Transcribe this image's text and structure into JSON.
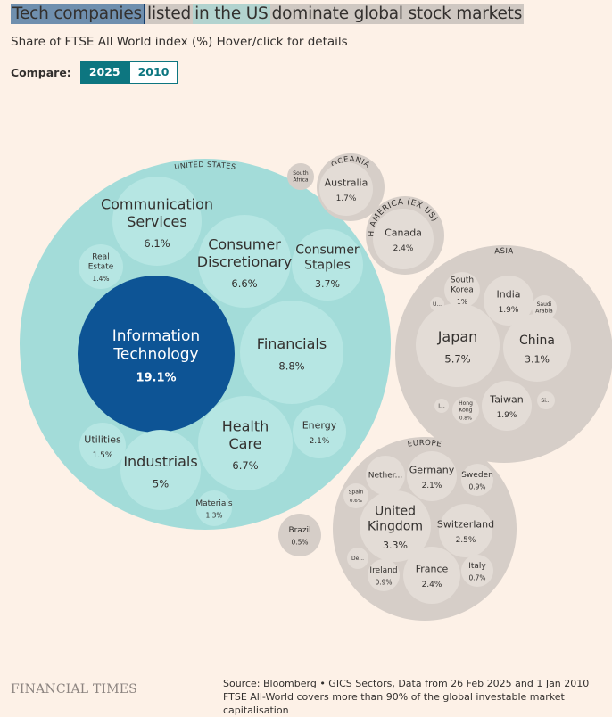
{
  "title": {
    "parts": [
      "Tech companies",
      "listed",
      "in the US",
      "dominate global stock markets"
    ]
  },
  "subtitle": "Share of FTSE All World index (%) Hover/click for details",
  "compare": {
    "label": "Compare:",
    "options": [
      "2025",
      "2010"
    ],
    "selected": "2025"
  },
  "footer": {
    "logo": "FINANCIAL TIMES",
    "source": "Source: Bloomberg • GICS Sectors, Data from 26 Feb 2025 and 1 Jan 2010",
    "note": "FTSE All-World covers more than 90% of the global investable market capitalisation"
  },
  "colors": {
    "background": "#fdf1e7",
    "us_group": "#a3dcd9",
    "us_sector": "#b6e6e3",
    "highlight": "#0d5495",
    "other_group": "#d6cec8",
    "other_country": "#e3dcd6"
  },
  "chart_data": {
    "type": "packed-bubble",
    "unit": "% share of FTSE All World index",
    "year": "2025",
    "groups": [
      {
        "name": "UNITED STATES",
        "children": [
          {
            "label": "Information Technology",
            "value": "19.1%"
          },
          {
            "label": "Financials",
            "value": "8.8%"
          },
          {
            "label": "Health Care",
            "value": "6.7%"
          },
          {
            "label": "Consumer Discretionary",
            "value": "6.6%"
          },
          {
            "label": "Communication Services",
            "value": "6.1%"
          },
          {
            "label": "Industrials",
            "value": "5%"
          },
          {
            "label": "Consumer Staples",
            "value": "3.7%"
          },
          {
            "label": "Energy",
            "value": "2.1%"
          },
          {
            "label": "Utilities",
            "value": "1.5%"
          },
          {
            "label": "Real Estate",
            "value": "1.4%"
          },
          {
            "label": "Materials",
            "value": "1.3%"
          }
        ]
      },
      {
        "name": "",
        "children": [
          {
            "label": "South Africa",
            "value": ""
          }
        ]
      },
      {
        "name": "OCEANIA",
        "children": [
          {
            "label": "Australia",
            "value": "1.7%"
          }
        ]
      },
      {
        "name": "NORTH AMERICA (EX US)",
        "children": [
          {
            "label": "Canada",
            "value": "2.4%"
          }
        ]
      },
      {
        "name": "ASIA",
        "children": [
          {
            "label": "Japan",
            "value": "5.7%"
          },
          {
            "label": "China",
            "value": "3.1%"
          },
          {
            "label": "India",
            "value": "1.9%"
          },
          {
            "label": "Taiwan",
            "value": "1.9%"
          },
          {
            "label": "South Korea",
            "value": "1%"
          },
          {
            "label": "Saudi Arabia",
            "value": ""
          },
          {
            "label": "Hong Kong",
            "value": "0.8%"
          },
          {
            "label": "U...",
            "value": ""
          },
          {
            "label": "I...",
            "value": ""
          },
          {
            "label": "Si...",
            "value": ""
          }
        ]
      },
      {
        "name": "EUROPE",
        "children": [
          {
            "label": "United Kingdom",
            "value": "3.3%"
          },
          {
            "label": "Switzerland",
            "value": "2.5%"
          },
          {
            "label": "France",
            "value": "2.4%"
          },
          {
            "label": "Germany",
            "value": "2.1%"
          },
          {
            "label": "Nether...",
            "value": ""
          },
          {
            "label": "Sweden",
            "value": "0.9%"
          },
          {
            "label": "Ireland",
            "value": "0.9%"
          },
          {
            "label": "Italy",
            "value": "0.7%"
          },
          {
            "label": "Spain",
            "value": "0.6%"
          },
          {
            "label": "De...",
            "value": ""
          }
        ]
      },
      {
        "name": "",
        "children": [
          {
            "label": "Brazil",
            "value": "0.5%"
          }
        ]
      }
    ]
  }
}
